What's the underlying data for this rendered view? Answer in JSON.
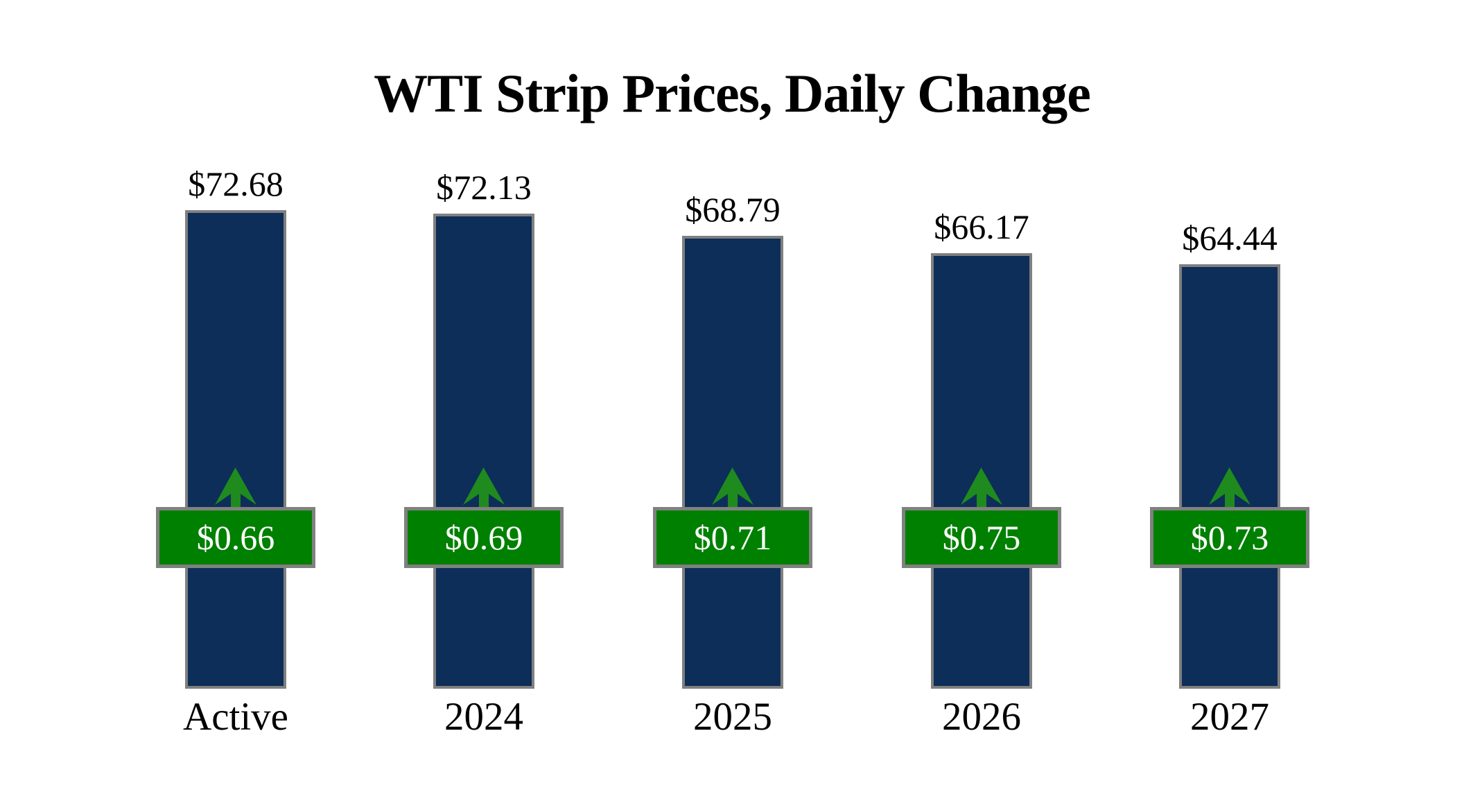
{
  "chart_data": {
    "type": "bar",
    "title": "WTI Strip Prices, Daily Change",
    "categories": [
      "Active",
      "2024",
      "2025",
      "2026",
      "2027"
    ],
    "series": [
      {
        "name": "WTI Strip Price",
        "role": "bar",
        "values": [
          72.68,
          72.13,
          68.79,
          66.17,
          64.44
        ],
        "labels": [
          "$72.68",
          "$72.13",
          "$68.79",
          "$66.17",
          "$64.44"
        ]
      },
      {
        "name": "Daily Change",
        "role": "change-badge",
        "direction": "up",
        "values": [
          0.66,
          0.69,
          0.71,
          0.75,
          0.73
        ],
        "labels": [
          "$0.66",
          "$0.69",
          "$0.71",
          "$0.75",
          "$0.73"
        ]
      }
    ],
    "ylim": [
      0,
      75
    ],
    "grid": false,
    "legend": "none",
    "axes_visible": false,
    "colors": {
      "background": "#ffffff",
      "text": "#000000",
      "bar_fill": "#0d2e58",
      "bar_border": "#808080",
      "badge_fill": "#008000",
      "badge_border": "#808080",
      "badge_text": "#ffffff",
      "arrow": "#1f8b1f"
    }
  }
}
